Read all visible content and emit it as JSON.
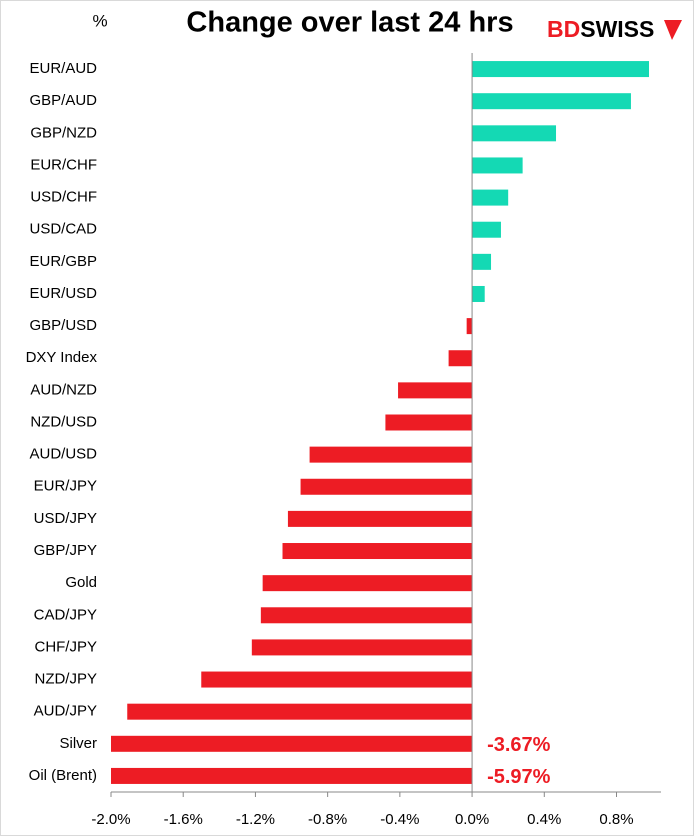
{
  "chart_data": {
    "type": "hbar",
    "title": "Change over last 24 hrs",
    "y_label": "%",
    "logo": [
      "BD",
      "SWISS"
    ],
    "categories": [
      "EUR/AUD",
      "GBP/AUD",
      "GBP/NZD",
      "EUR/CHF",
      "USD/CHF",
      "USD/CAD",
      "EUR/GBP",
      "EUR/USD",
      "GBP/USD",
      "DXY Index",
      "AUD/NZD",
      "NZD/USD",
      "AUD/USD",
      "EUR/JPY",
      "USD/JPY",
      "GBP/JPY",
      "Gold",
      "CAD/JPY",
      "CHF/JPY",
      "NZD/JPY",
      "AUD/JPY",
      "Silver",
      "Oil (Brent)"
    ],
    "values": [
      0.98,
      0.88,
      0.465,
      0.28,
      0.2,
      0.16,
      0.105,
      0.07,
      -0.03,
      -0.13,
      -0.41,
      -0.48,
      -0.9,
      -0.95,
      -1.02,
      -1.05,
      -1.16,
      -1.17,
      -1.22,
      -1.5,
      -1.91,
      -3.67,
      -5.97
    ],
    "value_labels": [
      null,
      null,
      null,
      null,
      null,
      null,
      null,
      null,
      null,
      null,
      null,
      null,
      null,
      null,
      null,
      null,
      null,
      null,
      null,
      null,
      null,
      "-3.67%",
      "-5.97%"
    ],
    "colors": {
      "positive": "#14d9b4",
      "negative": "#ed1c24"
    },
    "xlim": [
      -2.0,
      0.98
    ],
    "xticks": [
      {
        "value": -2.0,
        "label": "-2.0%"
      },
      {
        "value": -1.6,
        "label": "-1.6%"
      },
      {
        "value": -1.2,
        "label": "-1.2%"
      },
      {
        "value": -0.8,
        "label": "-0.8%"
      },
      {
        "value": -0.4,
        "label": "-0.4%"
      },
      {
        "value": 0,
        "label": "0.0%"
      },
      {
        "value": 0.4,
        "label": "0.4%"
      },
      {
        "value": 0.8,
        "label": "0.8%"
      }
    ]
  }
}
